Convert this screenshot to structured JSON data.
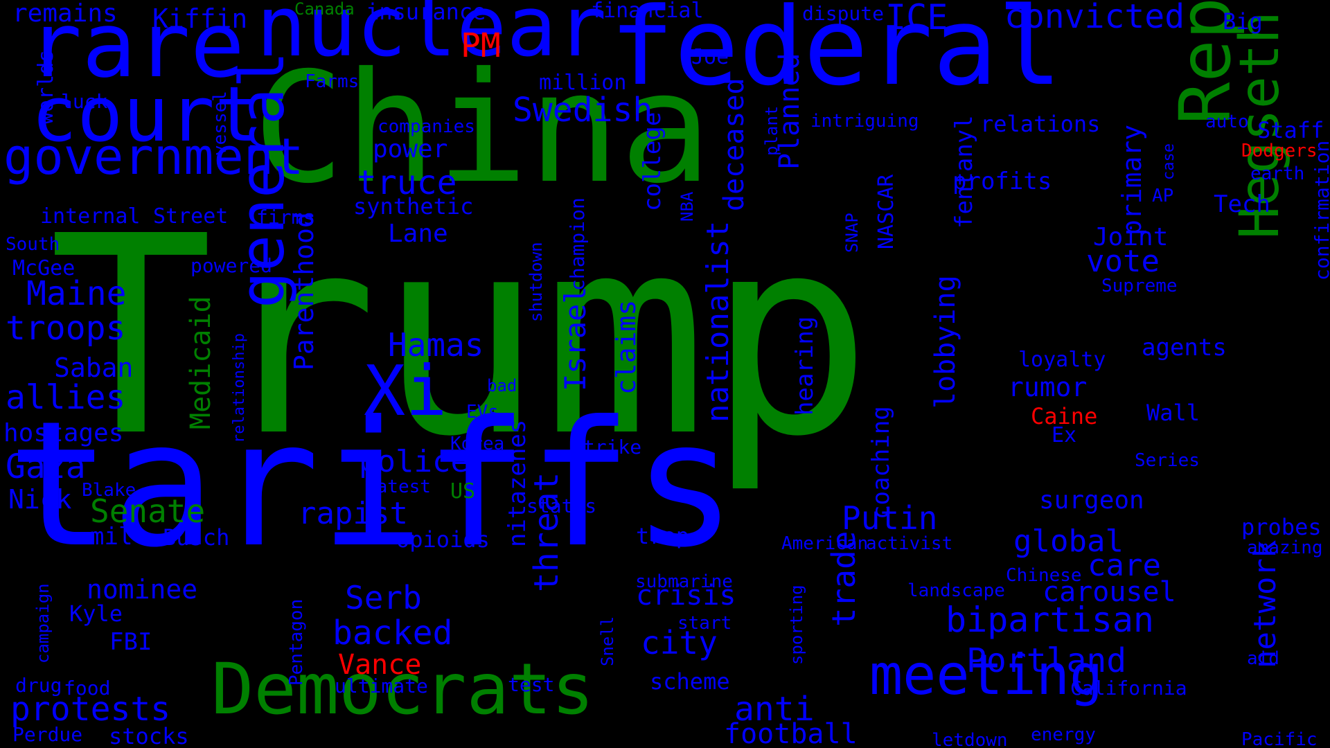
{
  "colors": {
    "background": "#000000",
    "blue": "#0000ff",
    "green": "#008000",
    "red": "#ff0000"
  },
  "words": [
    {
      "text": "Trump",
      "color": "green"
    },
    {
      "text": "China",
      "color": "green"
    },
    {
      "text": "tariffs",
      "color": "blue"
    },
    {
      "text": "federal",
      "color": "blue"
    },
    {
      "text": "nuclear",
      "color": "blue"
    },
    {
      "text": "rare",
      "color": "blue"
    },
    {
      "text": "court",
      "color": "blue"
    },
    {
      "text": "government",
      "color": "blue"
    },
    {
      "text": "Republicans",
      "color": "green"
    },
    {
      "text": "Democrats",
      "color": "green"
    },
    {
      "text": "Hegseth",
      "color": "green"
    },
    {
      "text": "general",
      "color": "blue"
    },
    {
      "text": "Xi",
      "color": "blue"
    },
    {
      "text": "meeting",
      "color": "blue"
    },
    {
      "text": "convicted",
      "color": "blue"
    },
    {
      "text": "ICE",
      "color": "blue"
    },
    {
      "text": "PM",
      "color": "red"
    },
    {
      "text": "Swedish",
      "color": "blue"
    },
    {
      "text": "truce",
      "color": "blue"
    },
    {
      "text": "Portland",
      "color": "blue"
    },
    {
      "text": "bipartisan",
      "color": "blue"
    },
    {
      "text": "protests",
      "color": "blue"
    },
    {
      "text": "Gaza",
      "color": "blue"
    },
    {
      "text": "troops",
      "color": "blue"
    },
    {
      "text": "allies",
      "color": "blue"
    },
    {
      "text": "Maine",
      "color": "blue"
    },
    {
      "text": "Senate",
      "color": "green"
    },
    {
      "text": "rapist",
      "color": "blue"
    },
    {
      "text": "police",
      "color": "blue"
    },
    {
      "text": "Hamas",
      "color": "blue"
    },
    {
      "text": "backed",
      "color": "blue"
    },
    {
      "text": "Serb",
      "color": "blue"
    },
    {
      "text": "Putin",
      "color": "blue"
    },
    {
      "text": "global",
      "color": "blue"
    },
    {
      "text": "care",
      "color": "blue"
    },
    {
      "text": "carousel",
      "color": "blue"
    },
    {
      "text": "vote",
      "color": "blue"
    },
    {
      "text": "Parenthood",
      "color": "blue"
    },
    {
      "text": "Medicaid",
      "color": "green"
    },
    {
      "text": "nationalist",
      "color": "blue"
    },
    {
      "text": "lobbying",
      "color": "blue"
    },
    {
      "text": "claims",
      "color": "blue"
    },
    {
      "text": "Israel",
      "color": "blue"
    },
    {
      "text": "deceased",
      "color": "blue"
    },
    {
      "text": "Planned",
      "color": "blue"
    },
    {
      "text": "primary",
      "color": "blue"
    },
    {
      "text": "network",
      "color": "blue"
    },
    {
      "text": "fentanyl",
      "color": "blue"
    },
    {
      "text": "threat",
      "color": "blue"
    },
    {
      "text": "nitazenes",
      "color": "blue"
    },
    {
      "text": "city",
      "color": "blue"
    },
    {
      "text": "crisis",
      "color": "blue"
    },
    {
      "text": "anti",
      "color": "blue"
    },
    {
      "text": "football",
      "color": "blue"
    },
    {
      "text": "trade",
      "color": "blue"
    },
    {
      "text": "college",
      "color": "blue"
    },
    {
      "text": "coaching",
      "color": "blue"
    },
    {
      "text": "hearing",
      "color": "blue"
    },
    {
      "text": "surgeon",
      "color": "blue"
    },
    {
      "text": "confirmation",
      "color": "blue"
    },
    {
      "text": "hostages",
      "color": "blue"
    },
    {
      "text": "Saban",
      "color": "blue"
    },
    {
      "text": "Nick",
      "color": "blue"
    },
    {
      "text": "nominee",
      "color": "blue"
    },
    {
      "text": "mill",
      "color": "blue"
    },
    {
      "text": "Busch",
      "color": "blue"
    },
    {
      "text": "remains",
      "color": "blue"
    },
    {
      "text": "Kiffin",
      "color": "blue"
    },
    {
      "text": "Canada",
      "color": "green"
    },
    {
      "text": "insurance",
      "color": "blue"
    },
    {
      "text": "financial",
      "color": "blue"
    },
    {
      "text": "dispute",
      "color": "blue"
    },
    {
      "text": "Big",
      "color": "blue"
    },
    {
      "text": "Joe",
      "color": "blue"
    },
    {
      "text": "million",
      "color": "blue"
    },
    {
      "text": "power",
      "color": "blue"
    },
    {
      "text": "synthetic",
      "color": "blue"
    },
    {
      "text": "Lane",
      "color": "blue"
    },
    {
      "text": "profits",
      "color": "blue"
    },
    {
      "text": "relations",
      "color": "blue"
    },
    {
      "text": "intriguing",
      "color": "blue"
    },
    {
      "text": "companies",
      "color": "blue"
    },
    {
      "text": "Farms",
      "color": "blue"
    },
    {
      "text": "luck",
      "color": "blue"
    },
    {
      "text": "worlds",
      "color": "blue"
    },
    {
      "text": "vessel",
      "color": "blue"
    },
    {
      "text": "internal",
      "color": "blue"
    },
    {
      "text": "Street",
      "color": "blue"
    },
    {
      "text": "firms",
      "color": "blue"
    },
    {
      "text": "South",
      "color": "blue"
    },
    {
      "text": "McGee",
      "color": "blue"
    },
    {
      "text": "powered",
      "color": "blue"
    },
    {
      "text": "relationship",
      "color": "blue"
    },
    {
      "text": "shutdown",
      "color": "blue"
    },
    {
      "text": "champion",
      "color": "blue"
    },
    {
      "text": "NBA",
      "color": "blue"
    },
    {
      "text": "plant",
      "color": "blue"
    },
    {
      "text": "SNAP",
      "color": "blue"
    },
    {
      "text": "NASCAR",
      "color": "blue"
    },
    {
      "text": "Joint",
      "color": "blue"
    },
    {
      "text": "AP",
      "color": "blue"
    },
    {
      "text": "case",
      "color": "blue"
    },
    {
      "text": "Tech",
      "color": "blue"
    },
    {
      "text": "auto",
      "color": "blue"
    },
    {
      "text": "Staff",
      "color": "blue"
    },
    {
      "text": "Dodgers",
      "color": "red"
    },
    {
      "text": "earth",
      "color": "blue"
    },
    {
      "text": "Supreme",
      "color": "blue"
    },
    {
      "text": "agents",
      "color": "blue"
    },
    {
      "text": "loyalty",
      "color": "blue"
    },
    {
      "text": "rumor",
      "color": "blue"
    },
    {
      "text": "Caine",
      "color": "red"
    },
    {
      "text": "Wall",
      "color": "blue"
    },
    {
      "text": "Ex",
      "color": "blue"
    },
    {
      "text": "Series",
      "color": "blue"
    },
    {
      "text": "bad",
      "color": "blue"
    },
    {
      "text": "EVs",
      "color": "blue"
    },
    {
      "text": "Korea",
      "color": "blue"
    },
    {
      "text": "strike",
      "color": "blue"
    },
    {
      "text": "latest",
      "color": "blue"
    },
    {
      "text": "US",
      "color": "green"
    },
    {
      "text": "Blake",
      "color": "blue"
    },
    {
      "text": "states",
      "color": "blue"
    },
    {
      "text": "opioids",
      "color": "blue"
    },
    {
      "text": "trap",
      "color": "blue"
    },
    {
      "text": "American",
      "color": "blue"
    },
    {
      "text": "activist",
      "color": "blue"
    },
    {
      "text": "probes",
      "color": "blue"
    },
    {
      "text": "amazing",
      "color": "blue"
    },
    {
      "text": "Chinese",
      "color": "blue"
    },
    {
      "text": "landscape",
      "color": "blue"
    },
    {
      "text": "submarine",
      "color": "blue"
    },
    {
      "text": "start",
      "color": "blue"
    },
    {
      "text": "sporting",
      "color": "blue"
    },
    {
      "text": "scheme",
      "color": "blue"
    },
    {
      "text": "Snell",
      "color": "blue"
    },
    {
      "text": "Kyle",
      "color": "blue"
    },
    {
      "text": "FBI",
      "color": "blue"
    },
    {
      "text": "campaign",
      "color": "blue"
    },
    {
      "text": "Pentagon",
      "color": "blue"
    },
    {
      "text": "Vance",
      "color": "red"
    },
    {
      "text": "ultimate",
      "color": "blue"
    },
    {
      "text": "test",
      "color": "blue"
    },
    {
      "text": "drug",
      "color": "blue"
    },
    {
      "text": "food",
      "color": "blue"
    },
    {
      "text": "Perdue",
      "color": "blue"
    },
    {
      "text": "stocks",
      "color": "blue"
    },
    {
      "text": "California",
      "color": "blue"
    },
    {
      "text": "letdown",
      "color": "blue"
    },
    {
      "text": "energy",
      "color": "blue"
    },
    {
      "text": "Pacific",
      "color": "blue"
    },
    {
      "text": "aid",
      "color": "blue"
    }
  ]
}
